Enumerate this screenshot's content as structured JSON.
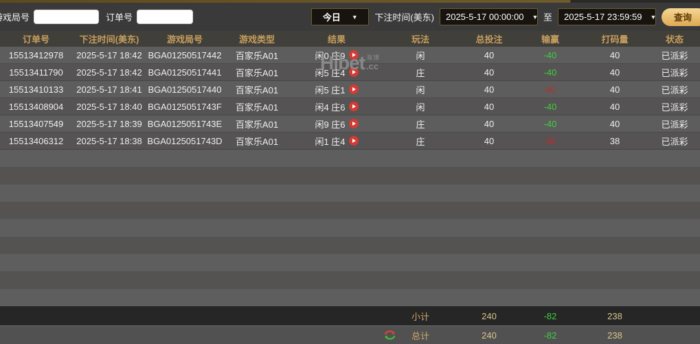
{
  "filters": {
    "game_round_label": "游戏局号",
    "order_no_label": "订单号",
    "date_preset": "今日",
    "bet_time_label": "下注时间(美东)",
    "start_time": "2025-5-17 00:00:00",
    "to_label": "至",
    "end_time": "2025-5-17 23:59:59",
    "search_button": "查询"
  },
  "table": {
    "headers": [
      "订单号",
      "下注时间(美东)",
      "游戏局号",
      "游戏类型",
      "结果",
      "玩法",
      "总投注",
      "输赢",
      "打码量",
      "状态"
    ],
    "rows": [
      {
        "order_no": "15513412978",
        "bet_time": "2025-5-17 18:42",
        "round": "BGA01250517442",
        "game_type": "百家乐A01",
        "result": "闲0 庄9",
        "play": "闲",
        "total_bet": "40",
        "win_loss": "-40",
        "win_loss_color": "green",
        "rolling": "40",
        "status": "已派彩"
      },
      {
        "order_no": "15513411790",
        "bet_time": "2025-5-17 18:42",
        "round": "BGA01250517441",
        "game_type": "百家乐A01",
        "result": "闲5 庄4",
        "play": "庄",
        "total_bet": "40",
        "win_loss": "-40",
        "win_loss_color": "green",
        "rolling": "40",
        "status": "已派彩"
      },
      {
        "order_no": "15513410133",
        "bet_time": "2025-5-17 18:41",
        "round": "BGA01250517440",
        "game_type": "百家乐A01",
        "result": "闲5 庄1",
        "play": "闲",
        "total_bet": "40",
        "win_loss": "40",
        "win_loss_color": "red",
        "rolling": "40",
        "status": "已派彩"
      },
      {
        "order_no": "15513408904",
        "bet_time": "2025-5-17 18:40",
        "round": "BGA0125051743F",
        "game_type": "百家乐A01",
        "result": "闲4 庄6",
        "play": "闲",
        "total_bet": "40",
        "win_loss": "-40",
        "win_loss_color": "green",
        "rolling": "40",
        "status": "已派彩"
      },
      {
        "order_no": "15513407549",
        "bet_time": "2025-5-17 18:39",
        "round": "BGA0125051743E",
        "game_type": "百家乐A01",
        "result": "闲9 庄6",
        "play": "庄",
        "total_bet": "40",
        "win_loss": "-40",
        "win_loss_color": "green",
        "rolling": "40",
        "status": "已派彩"
      },
      {
        "order_no": "15513406312",
        "bet_time": "2025-5-17 18:38",
        "round": "BGA0125051743D",
        "game_type": "百家乐A01",
        "result": "闲1 庄4",
        "play": "庄",
        "total_bet": "40",
        "win_loss": "38",
        "win_loss_color": "red",
        "rolling": "38",
        "status": "已派彩"
      }
    ],
    "subtotal": {
      "label": "小计",
      "total_bet": "240",
      "win_loss": "-82",
      "rolling": "238"
    },
    "grand_total": {
      "label": "总计",
      "total_bet": "240",
      "win_loss": "-82",
      "rolling": "238"
    }
  },
  "watermark": {
    "text": "Hibet",
    "cn": "海博",
    "cc": ".cc"
  },
  "colors": {
    "win_loss_green": "#3fcf3f",
    "win_loss_red": "#b5312d",
    "header_gold": "#c79e5e",
    "summary_gold": "#d9c490",
    "play_icon_red": "#d23c34",
    "search_button_gold": "#e9bc6b"
  }
}
